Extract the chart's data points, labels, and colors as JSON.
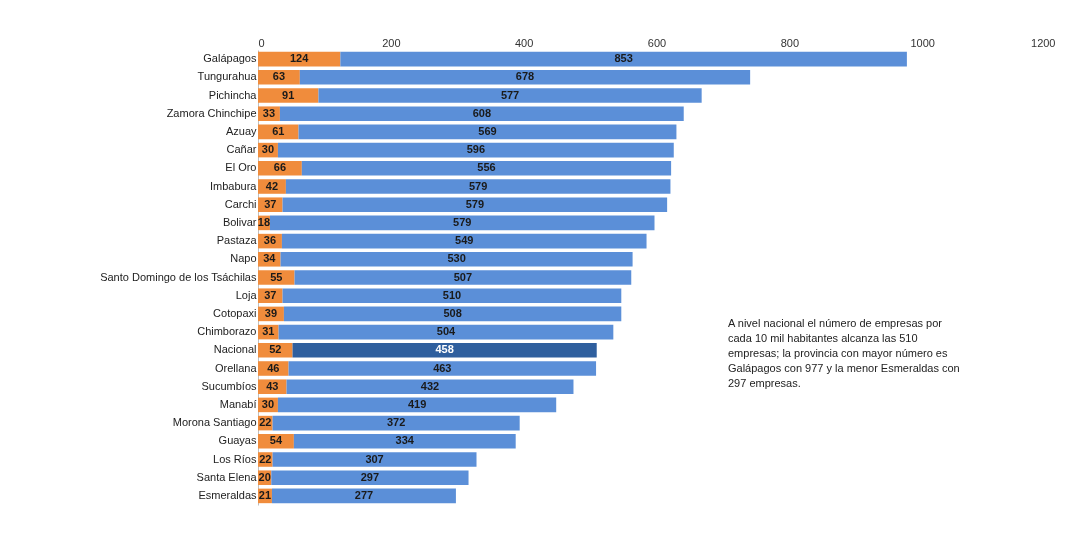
{
  "chart_data": {
    "type": "bar",
    "orientation": "horizontal",
    "stacked": true,
    "data_labels": true,
    "grid": false,
    "categories": [
      "Galápagos",
      "Tungurahua",
      "Pichincha",
      "Zamora Chinchipe",
      "Azuay",
      "Cañar",
      "El Oro",
      "Imbabura",
      "Carchi",
      "Bolivar",
      "Pastaza",
      "Napo",
      "Santo Domingo de los Tsáchilas",
      "Loja",
      "Cotopaxi",
      "Chimborazo",
      "Nacional",
      "Orellana",
      "Sucumbíos",
      "Manabí",
      "Morona Santiago",
      "Guayas",
      "Los Ríos",
      "Santa Elena",
      "Esmeraldas"
    ],
    "series": [
      {
        "color": "#f08c3c",
        "values": [
          124,
          63,
          91,
          33,
          61,
          30,
          66,
          42,
          37,
          18,
          36,
          34,
          55,
          37,
          39,
          31,
          52,
          46,
          43,
          30,
          22,
          54,
          22,
          20,
          21
        ]
      },
      {
        "color": "#5b8fd8",
        "colors": [
          null,
          null,
          null,
          null,
          null,
          null,
          null,
          null,
          null,
          null,
          null,
          null,
          null,
          null,
          null,
          null,
          "#2f5f9e",
          null,
          null,
          null,
          null,
          null,
          null,
          null,
          null
        ],
        "values": [
          853,
          678,
          577,
          608,
          569,
          596,
          556,
          579,
          579,
          579,
          549,
          530,
          507,
          510,
          508,
          504,
          458,
          463,
          432,
          419,
          372,
          334,
          307,
          297,
          277
        ]
      }
    ],
    "xlim": [
      0,
      1200
    ],
    "xticks": [
      0,
      200,
      400,
      600,
      800,
      1000,
      1200
    ],
    "annotations": [
      "A nivel nacional el número de empresas por cada 10 mil habitantes alcanza las 510 empresas; la provincia con mayor número es Galápagos con 977 y la menor Esmeraldas con 297 empresas."
    ]
  }
}
